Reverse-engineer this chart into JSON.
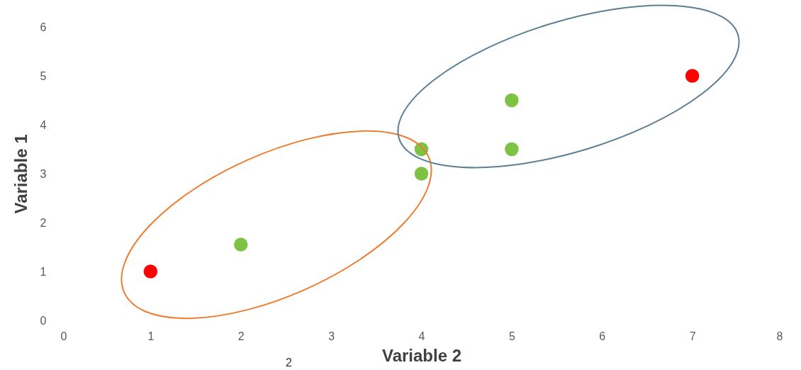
{
  "chart_data": {
    "type": "scatter",
    "xlabel": "Variable 2",
    "ylabel": "Variable 1",
    "annotations": [
      "2"
    ],
    "x": [
      1,
      2,
      4,
      4,
      5,
      5,
      7
    ],
    "values": [
      1,
      1.55,
      3.5,
      3,
      4.5,
      3.5,
      5
    ],
    "colors": [
      "#ff0000",
      "#7dc242",
      "#7dc242",
      "#7dc242",
      "#7dc242",
      "#7dc242",
      "#ff0000"
    ],
    "xlim": [
      0,
      8
    ],
    "xticks": [
      0,
      1,
      2,
      3,
      4,
      5,
      6,
      7,
      8
    ],
    "ylim": [
      0,
      6
    ],
    "yticks": [
      0,
      1,
      2,
      3,
      4,
      5,
      6
    ],
    "marker": "circle",
    "grid": false,
    "legend": false
  }
}
